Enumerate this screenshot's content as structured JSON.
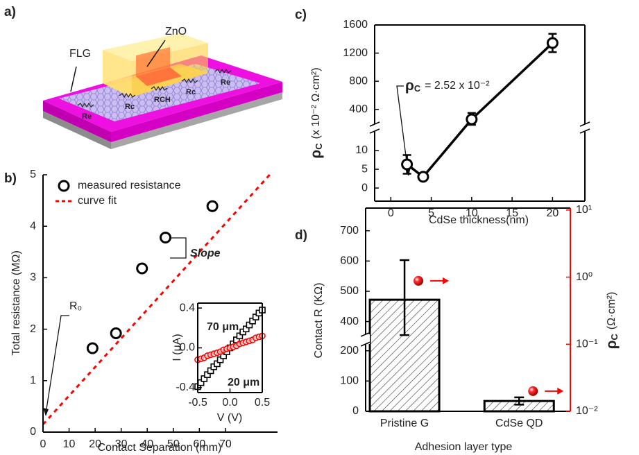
{
  "diagram": {
    "label": "a)",
    "flg": "FLG",
    "zno": "ZnO",
    "resistors": [
      "Re",
      "Rc",
      "RCH",
      "Rc",
      "Re"
    ]
  },
  "chart_data": [
    {
      "type": "scatter",
      "panel_label": "b)",
      "xlabel": "Contact Separation (mm)",
      "ylabel": "Total resistance (MΩ)",
      "xlim": [
        0,
        90
      ],
      "ylim": [
        0,
        5
      ],
      "xticks": [
        0,
        10,
        20,
        30,
        40,
        50,
        60,
        70
      ],
      "yticks": [
        0,
        1,
        2,
        3,
        4,
        5
      ],
      "legend": "upper left",
      "series": [
        {
          "name": "measured resistance",
          "color": "#000000",
          "marker": "circle",
          "x": [
            19,
            28,
            38,
            47,
            65
          ],
          "values": [
            1.63,
            1.92,
            3.18,
            3.78,
            4.39
          ]
        },
        {
          "name": "curve fit",
          "color": "#ff0000",
          "style": "dashed",
          "x": [
            0,
            87
          ],
          "values": [
            0.15,
            5
          ]
        }
      ],
      "annotations": [
        "R₀",
        "Slope"
      ]
    },
    {
      "type": "scatter",
      "xlabel": "V (V)",
      "ylabel": "I (μA)",
      "xlim": [
        -0.5,
        0.5
      ],
      "ylim": [
        -0.45,
        0.45
      ],
      "xticks": [
        -0.5,
        {
          "value": 0,
          "label": "0.0"
        },
        0.5
      ],
      "yticks": [
        -0.4,
        {
          "value": 0,
          "label": "0.0"
        },
        0.4
      ],
      "series": [
        {
          "name": "20 μm",
          "color": "#000000",
          "marker": "square",
          "x": [
            -0.5,
            -0.45,
            -0.4,
            -0.35,
            -0.3,
            -0.25,
            -0.2,
            -0.15,
            -0.1,
            -0.05,
            0,
            0.05,
            0.1,
            0.15,
            0.2,
            0.25,
            0.3,
            0.35,
            0.4,
            0.45,
            0.5
          ],
          "values": [
            -0.39,
            -0.35,
            -0.31,
            -0.27,
            -0.23,
            -0.19,
            -0.16,
            -0.12,
            -0.08,
            -0.04,
            0,
            0.04,
            0.08,
            0.12,
            0.16,
            0.19,
            0.23,
            0.27,
            0.31,
            0.35,
            0.38
          ]
        },
        {
          "name": "70 μm",
          "color": "#ff0000",
          "marker": "circle",
          "x": [
            -0.5,
            -0.45,
            -0.4,
            -0.35,
            -0.3,
            -0.25,
            -0.2,
            -0.15,
            -0.1,
            -0.05,
            0,
            0.05,
            0.1,
            0.15,
            0.2,
            0.25,
            0.3,
            0.35,
            0.4,
            0.45,
            0.5
          ],
          "values": [
            -0.12,
            -0.11,
            -0.1,
            -0.08,
            -0.07,
            -0.06,
            -0.05,
            -0.04,
            -0.02,
            -0.01,
            0,
            0.01,
            0.02,
            0.04,
            0.05,
            0.06,
            0.07,
            0.08,
            0.1,
            0.11,
            0.12
          ]
        }
      ]
    },
    {
      "type": "scatter",
      "panel_label": "c)",
      "xlabel": "CdSe thickness(nm)",
      "ylabel": {
        "symbol": "ρ",
        "sub": "C",
        "unit": "(x 10⁻² Ω·cm²)"
      },
      "xlim": [
        -2,
        24
      ],
      "ylim": [
        -3.5,
        1600
      ],
      "ybreak": [
        15,
        200
      ],
      "xticks": [
        0,
        5,
        10,
        15,
        20
      ],
      "yticks": [
        0,
        5,
        10,
        400,
        800,
        1200,
        1600
      ],
      "series": [
        {
          "color": "#000000",
          "marker": "circle",
          "connect": true,
          "x": [
            2,
            4,
            10,
            20
          ],
          "values": [
            6.3,
            3.0,
            259,
            1344
          ],
          "errors": [
            2.5,
            0.8,
            90,
            130
          ]
        }
      ],
      "annotations": [
        {
          "symbol": "ρ",
          "sub": "C",
          "text": "= 2.52 x 10⁻²"
        }
      ]
    },
    {
      "type": "bar",
      "panel_label": "d)",
      "xlabel": "Adhesion layer type",
      "ylabel": "Contact R (KΩ)",
      "y2label": {
        "symbol": "ρ",
        "sub": "C",
        "unit": "(Ω·cm²)"
      },
      "categories": [
        "Pristine G",
        "CdSe QD"
      ],
      "ylim": [
        0,
        775
      ],
      "ybreak": [
        220,
        360
      ],
      "yticks": [
        0,
        100,
        200,
        400,
        500,
        600,
        700
      ],
      "y2lim": [
        0.01,
        10.7
      ],
      "y2scale": "log",
      "y2ticks": [
        {
          "value": 0.01,
          "label": "10⁻²"
        },
        {
          "value": 0.1,
          "label": "10⁻¹"
        },
        {
          "value": 1,
          "label": "10⁰"
        },
        {
          "value": 10,
          "label": "10¹"
        }
      ],
      "series": [
        {
          "color": "#000000",
          "hatch": true,
          "values": [
            472,
            34
          ],
          "errors": [
            131,
            12
          ]
        },
        {
          "axis": "y2",
          "color": "#ff0000",
          "marker": "sphere",
          "values": [
            0.88,
            0.02
          ]
        }
      ]
    }
  ]
}
